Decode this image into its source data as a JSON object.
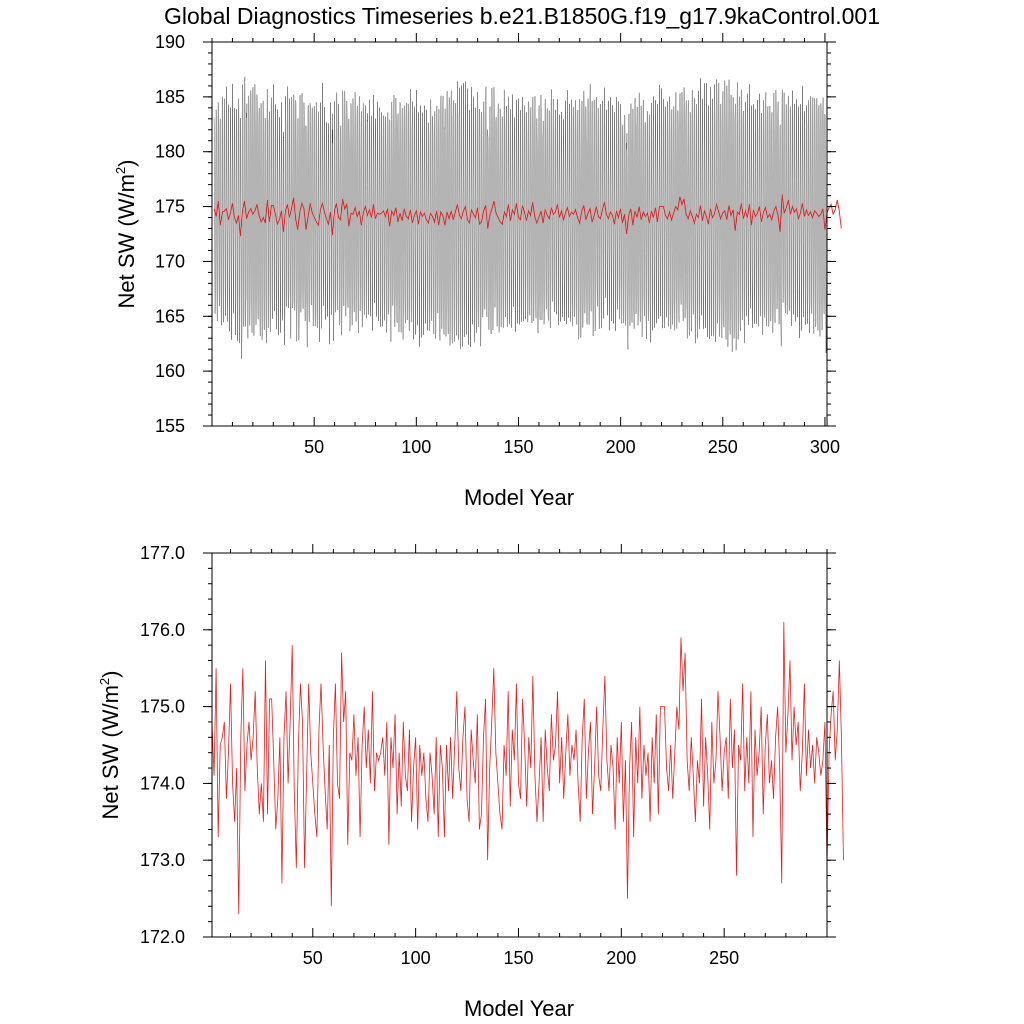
{
  "title": "Global Diagnostics Timeseries b.e21.B1850G.f19_g17.9kaControl.001",
  "colors": {
    "monthly": "#000000",
    "annual": "#e02020",
    "frame": "#000000"
  },
  "chart_data": [
    {
      "type": "line",
      "title": "",
      "xlabel": "Model Year",
      "ylabel_main": "Net SW (W/m",
      "ylabel_sup": "2",
      "ylabel_close": ")",
      "xlim": [
        0,
        301
      ],
      "ylim": [
        155,
        190
      ],
      "x_ticks": [
        50,
        100,
        150,
        200,
        250,
        300
      ],
      "x_tick_labels": [
        "50",
        "100",
        "150",
        "200",
        "250",
        "300"
      ],
      "y_ticks": [
        155,
        160,
        165,
        170,
        175,
        180,
        185,
        190
      ],
      "y_tick_labels": [
        "155",
        "160",
        "165",
        "170",
        "175",
        "180",
        "185",
        "190"
      ],
      "series": [
        {
          "kind": "monthly",
          "color": "#000000",
          "annual_max_approx": [
            181.5,
            182.0,
            181.0,
            183.0,
            182.5,
            181.5,
            180.5,
            182.0,
            183.5,
            181.0,
            186.2,
            182.0,
            181.0,
            183.0,
            182.0,
            181.5,
            182.5,
            181.0,
            182.0,
            183.0,
            184.5,
            182.0,
            181.5,
            183.0,
            182.0,
            184.7
          ],
          "annual_min_approx": [
            162.0,
            158.0,
            157.6,
            161.0,
            160.5,
            160.0,
            159.5,
            161.0,
            160.5,
            159.0,
            161.0,
            160.0,
            159.0,
            161.5,
            160.5,
            158.5,
            161.0,
            160.0,
            159.5,
            161.0,
            160.0,
            156.5,
            159.5,
            161.0,
            160.0,
            160.0
          ]
        },
        {
          "kind": "annual",
          "color": "#e02020"
        }
      ]
    },
    {
      "type": "line",
      "title": "",
      "xlabel": "Model Year",
      "ylabel_main": "Net SW (W/m",
      "ylabel_sup": "2",
      "ylabel_close": ")",
      "xlim": [
        1,
        300
      ],
      "ylim": [
        172.0,
        177.0
      ],
      "x_ticks": [
        50,
        100,
        150,
        200,
        250
      ],
      "x_tick_labels": [
        "50",
        "100",
        "150",
        "200",
        "250"
      ],
      "y_ticks": [
        172.0,
        173.0,
        174.0,
        175.0,
        176.0,
        177.0
      ],
      "y_tick_labels": [
        "172.0",
        "173.0",
        "174.0",
        "175.0",
        "176.0",
        "177.0"
      ],
      "series": [
        {
          "kind": "annual",
          "color": "#e02020",
          "x_start": 1,
          "values": [
            174.8,
            174.1,
            175.5,
            173.3,
            174.5,
            174.6,
            174.8,
            173.8,
            174.4,
            175.3,
            174.0,
            173.5,
            174.2,
            172.3,
            174.6,
            175.5,
            173.9,
            174.5,
            174.8,
            174.3,
            174.6,
            175.2,
            174.2,
            173.6,
            174.0,
            173.5,
            175.6,
            173.6,
            175.1,
            175.1,
            174.3,
            173.4,
            173.8,
            174.6,
            172.7,
            174.6,
            175.2,
            174.0,
            174.8,
            175.8,
            173.9,
            172.9,
            174.5,
            175.3,
            174.8,
            172.9,
            174.1,
            175.3,
            174.4,
            174.0,
            173.6,
            173.3,
            174.7,
            175.3,
            174.5,
            173.9,
            173.4,
            174.5,
            172.4,
            174.6,
            175.3,
            174.0,
            173.8,
            175.7,
            174.8,
            175.2,
            173.2,
            174.4,
            174.3,
            174.9,
            174.1,
            174.6,
            173.3,
            174.5,
            175.0,
            174.2,
            174.7,
            174.0,
            175.2,
            173.9,
            174.4,
            174.3,
            174.4,
            174.6,
            174.1,
            174.8,
            173.2,
            174.6,
            174.2,
            174.9,
            173.6,
            174.4,
            173.7,
            174.8,
            174.1,
            173.9,
            174.7,
            173.5,
            174.2,
            174.6,
            173.4,
            174.5,
            174.1,
            174.4,
            173.8,
            173.5,
            174.4,
            174.1,
            173.6,
            174.6,
            173.3,
            174.5,
            174.2,
            173.3,
            174.5,
            173.9,
            174.6,
            173.8,
            174.5,
            175.2,
            174.2,
            173.9,
            174.6,
            175.0,
            173.8,
            173.5,
            174.7,
            174.3,
            174.0,
            174.9,
            173.4,
            173.6,
            174.6,
            175.1,
            173.0,
            174.2,
            174.8,
            175.5,
            174.4,
            174.0,
            173.6,
            173.4,
            174.5,
            174.1,
            175.2,
            173.7,
            174.7,
            174.3,
            175.3,
            174.0,
            173.8,
            175.1,
            174.5,
            173.7,
            174.6,
            174.2,
            175.4,
            174.1,
            173.5,
            174.0,
            174.6,
            173.5,
            174.7,
            174.2,
            173.9,
            174.9,
            174.3,
            174.5,
            175.2,
            174.0,
            174.6,
            173.8,
            174.4,
            174.9,
            174.1,
            174.5,
            174.3,
            174.7,
            174.0,
            173.5,
            174.6,
            175.1,
            173.8,
            174.4,
            174.8,
            173.6,
            174.2,
            175.0,
            174.1,
            173.9,
            174.7,
            175.4,
            174.3,
            173.9,
            174.5,
            174.2,
            173.4,
            174.6,
            174.0,
            174.8,
            173.5,
            174.3,
            172.5,
            174.2,
            174.8,
            173.3,
            174.6,
            174.0,
            175.0,
            173.8,
            174.5,
            174.1,
            174.4,
            173.5,
            174.6,
            174.0,
            174.9,
            173.6,
            175.0,
            175.0,
            175.0,
            174.2,
            173.9,
            174.5,
            173.8,
            174.4,
            175.0,
            174.7,
            175.9,
            175.2,
            175.7,
            174.3,
            173.9,
            174.6,
            174.1,
            173.5,
            174.3,
            174.0,
            175.1,
            173.7,
            174.6,
            174.1,
            173.4,
            174.8,
            174.0,
            174.3,
            175.2,
            174.6,
            173.9,
            174.4,
            174.6,
            173.8,
            175.1,
            174.2,
            174.7,
            172.8,
            174.5,
            174.3,
            175.3,
            173.9,
            174.6,
            174.0,
            175.2,
            173.3,
            174.7,
            174.1,
            174.4,
            175.0,
            173.6,
            174.5,
            174.9,
            174.0,
            174.3,
            173.8,
            174.6,
            175.0,
            174.2,
            172.7,
            176.1,
            174.4,
            174.9,
            175.6,
            174.3,
            175.0,
            174.5,
            174.8,
            173.9,
            174.4,
            175.3,
            174.1,
            174.7,
            174.2,
            174.5,
            174.0,
            174.6,
            174.4,
            174.1,
            174.3,
            174.8,
            172.9,
            174.4,
            174.9,
            175.2,
            174.3,
            174.7,
            175.6,
            174.6,
            173.0
          ]
        }
      ]
    }
  ]
}
